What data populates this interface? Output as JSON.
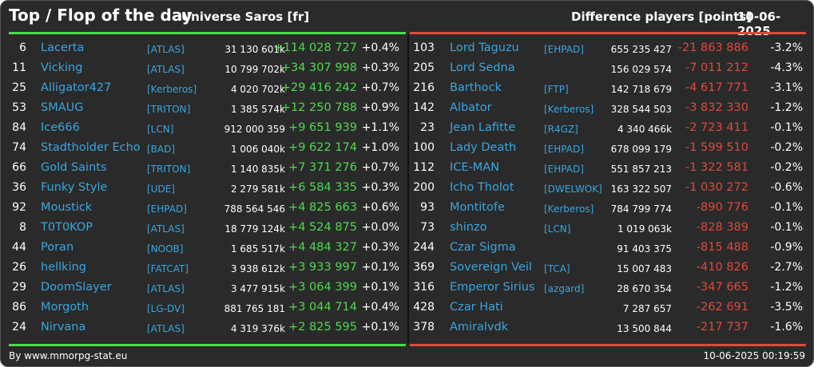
{
  "header": {
    "title": "Top / Flop of the day",
    "universe": "Universe Saros [fr]",
    "metric": "Difference players [points]",
    "date": "10-06-2025"
  },
  "colors": {
    "positive": "#4ddb4d",
    "negative": "#e04a3c",
    "link": "#3aa6e0",
    "background": "#2a2a2a"
  },
  "top": [
    {
      "rank": "6",
      "name": "Lacerta",
      "alliance": "[ATLAS]",
      "points": "31 130 601k",
      "delta": "+114 028 727",
      "pct": "+0.4%"
    },
    {
      "rank": "11",
      "name": "Vicking",
      "alliance": "[ATLAS]",
      "points": "10 799 702k",
      "delta": "+34 307 998",
      "pct": "+0.3%"
    },
    {
      "rank": "25",
      "name": "Alligator427",
      "alliance": "[Kerberos]",
      "points": "4 020 702k",
      "delta": "+29 416 242",
      "pct": "+0.7%"
    },
    {
      "rank": "53",
      "name": "SMAUG",
      "alliance": "[TRITON]",
      "points": "1 385 574k",
      "delta": "+12 250 788",
      "pct": "+0.9%"
    },
    {
      "rank": "84",
      "name": "Ice666",
      "alliance": "[LCN]",
      "points": "912 000 359",
      "delta": "+9 651 939",
      "pct": "+1.1%"
    },
    {
      "rank": "74",
      "name": "Stadtholder Echo",
      "alliance": "[BAD]",
      "points": "1 006 040k",
      "delta": "+9 622 174",
      "pct": "+1.0%"
    },
    {
      "rank": "66",
      "name": "Gold Saints",
      "alliance": "[TRITON]",
      "points": "1 140 835k",
      "delta": "+7 371 276",
      "pct": "+0.7%"
    },
    {
      "rank": "36",
      "name": "Funky Style",
      "alliance": "[UDE]",
      "points": "2 279 581k",
      "delta": "+6 584 335",
      "pct": "+0.3%"
    },
    {
      "rank": "92",
      "name": "Moustick",
      "alliance": "[EHPAD]",
      "points": "788 564 546",
      "delta": "+4 825 663",
      "pct": "+0.6%"
    },
    {
      "rank": "8",
      "name": "T0T0KOP",
      "alliance": "[ATLAS]",
      "points": "18 779 124k",
      "delta": "+4 524 875",
      "pct": "+0.0%"
    },
    {
      "rank": "44",
      "name": "Poran",
      "alliance": "[NOOB]",
      "points": "1 685 517k",
      "delta": "+4 484 327",
      "pct": "+0.3%"
    },
    {
      "rank": "26",
      "name": "hellking",
      "alliance": "[FATCAT]",
      "points": "3 938 612k",
      "delta": "+3 933 997",
      "pct": "+0.1%"
    },
    {
      "rank": "29",
      "name": "DoomSlayer",
      "alliance": "[ATLAS]",
      "points": "3 477 915k",
      "delta": "+3 064 399",
      "pct": "+0.1%"
    },
    {
      "rank": "86",
      "name": "Morgoth",
      "alliance": "[LG-DV]",
      "points": "881 765 181",
      "delta": "+3 044 714",
      "pct": "+0.4%"
    },
    {
      "rank": "24",
      "name": "Nirvana",
      "alliance": "[ATLAS]",
      "points": "4 319 376k",
      "delta": "+2 825 595",
      "pct": "+0.1%"
    }
  ],
  "flop": [
    {
      "rank": "103",
      "name": "Lord Taguzu",
      "alliance": "[EHPAD]",
      "points": "655 235 427",
      "delta": "-21 863 886",
      "pct": "-3.2%"
    },
    {
      "rank": "205",
      "name": "Lord Sedna",
      "alliance": "",
      "points": "156 029 574",
      "delta": "-7 011 212",
      "pct": "-4.3%"
    },
    {
      "rank": "216",
      "name": "Barthock",
      "alliance": "[FTP]",
      "points": "142 718 679",
      "delta": "-4 617 771",
      "pct": "-3.1%"
    },
    {
      "rank": "142",
      "name": "Albator",
      "alliance": "[Kerberos]",
      "points": "328 544 503",
      "delta": "-3 832 330",
      "pct": "-1.2%"
    },
    {
      "rank": "23",
      "name": "Jean Lafitte",
      "alliance": "[R4GZ]",
      "points": "4 340 466k",
      "delta": "-2 723 411",
      "pct": "-0.1%"
    },
    {
      "rank": "100",
      "name": "Lady Death",
      "alliance": "[EHPAD]",
      "points": "678 099 179",
      "delta": "-1 599 510",
      "pct": "-0.2%"
    },
    {
      "rank": "112",
      "name": "ICE-MAN",
      "alliance": "[EHPAD]",
      "points": "551 857 213",
      "delta": "-1 322 581",
      "pct": "-0.2%"
    },
    {
      "rank": "200",
      "name": "Icho Tholot",
      "alliance": "[DWELWOK]",
      "points": "163 322 507",
      "delta": "-1 030 272",
      "pct": "-0.6%"
    },
    {
      "rank": "93",
      "name": "Montitofe",
      "alliance": "[Kerberos]",
      "points": "784 799 774",
      "delta": "-890 776",
      "pct": "-0.1%"
    },
    {
      "rank": "73",
      "name": "shinzo",
      "alliance": "[LCN]",
      "points": "1 019 063k",
      "delta": "-828 389",
      "pct": "-0.1%"
    },
    {
      "rank": "244",
      "name": "Czar Sigma",
      "alliance": "",
      "points": "91 403 375",
      "delta": "-815 488",
      "pct": "-0.9%"
    },
    {
      "rank": "369",
      "name": "Sovereign Veil",
      "alliance": "[TCA]",
      "points": "15 007 483",
      "delta": "-410 826",
      "pct": "-2.7%"
    },
    {
      "rank": "316",
      "name": "Emperor Sirius",
      "alliance": "[azgard]",
      "points": "28 670 354",
      "delta": "-347 665",
      "pct": "-1.2%"
    },
    {
      "rank": "428",
      "name": "Czar Hati",
      "alliance": "",
      "points": "7 287 657",
      "delta": "-262 691",
      "pct": "-3.5%"
    },
    {
      "rank": "378",
      "name": "Amiralvdk",
      "alliance": "",
      "points": "13 500 844",
      "delta": "-217 737",
      "pct": "-1.6%"
    }
  ],
  "footer": {
    "source": "By www.mmorpg-stat.eu",
    "timestamp": "10-06-2025 00:19:59"
  }
}
